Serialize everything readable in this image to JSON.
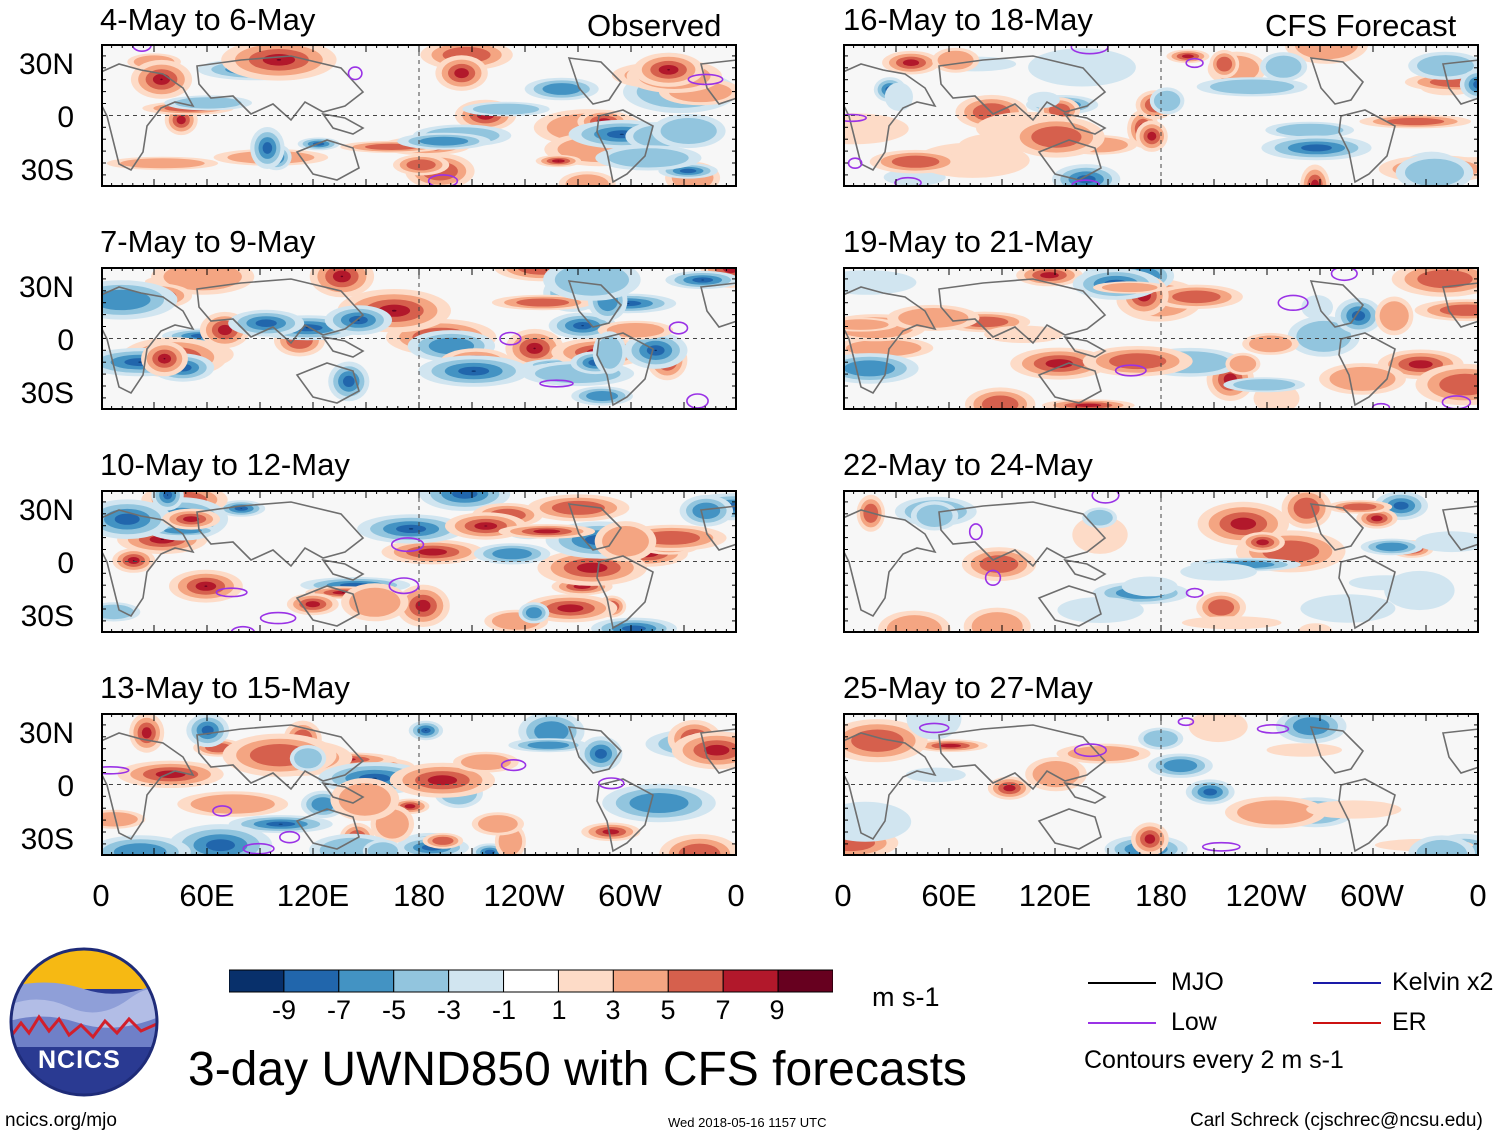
{
  "panel_labels": {
    "left": "Observed",
    "right": "CFS Forecast"
  },
  "panels": [
    {
      "title": "4-May to 6-May",
      "column": "observed"
    },
    {
      "title": "7-May to 9-May",
      "column": "observed"
    },
    {
      "title": "10-May to 12-May",
      "column": "observed"
    },
    {
      "title": "13-May to 15-May",
      "column": "observed"
    },
    {
      "title": "16-May to 18-May",
      "column": "forecast"
    },
    {
      "title": "19-May to 21-May",
      "column": "forecast"
    },
    {
      "title": "22-May to 24-May",
      "column": "forecast"
    },
    {
      "title": "25-May to 27-May",
      "column": "forecast"
    }
  ],
  "lat_labels": [
    "30N",
    "0",
    "30S"
  ],
  "lon_labels": [
    "0",
    "60E",
    "120E",
    "180",
    "120W",
    "60W",
    "0"
  ],
  "colorbar": {
    "ticks": [
      "-9",
      "-7",
      "-5",
      "-3",
      "-1",
      "1",
      "3",
      "5",
      "7",
      "9"
    ],
    "unit": "m s-1",
    "colors": [
      "#08306b",
      "#2166ac",
      "#4393c3",
      "#92c5de",
      "#d1e5f0",
      "#ffffff",
      "#fddbc7",
      "#f4a582",
      "#d6604d",
      "#b2182b",
      "#67001f"
    ]
  },
  "legend": {
    "items": [
      {
        "label": "MJO",
        "color": "#000000"
      },
      {
        "label": "Kelvin x2",
        "color": "#1a1aa8"
      },
      {
        "label": "Low",
        "color": "#9a32e6"
      },
      {
        "label": "ER",
        "color": "#cc1111"
      }
    ],
    "note": "Contours every 2 m s-1"
  },
  "title": "3-day UWND850 with CFS forecasts",
  "logo_text": "NCICS",
  "footer": {
    "url": "ncics.org/mjo",
    "timestamp": "Wed 2018-05-16 1157 UTC",
    "author": "Carl Schreck (cjschrec@ncsu.edu)"
  }
}
